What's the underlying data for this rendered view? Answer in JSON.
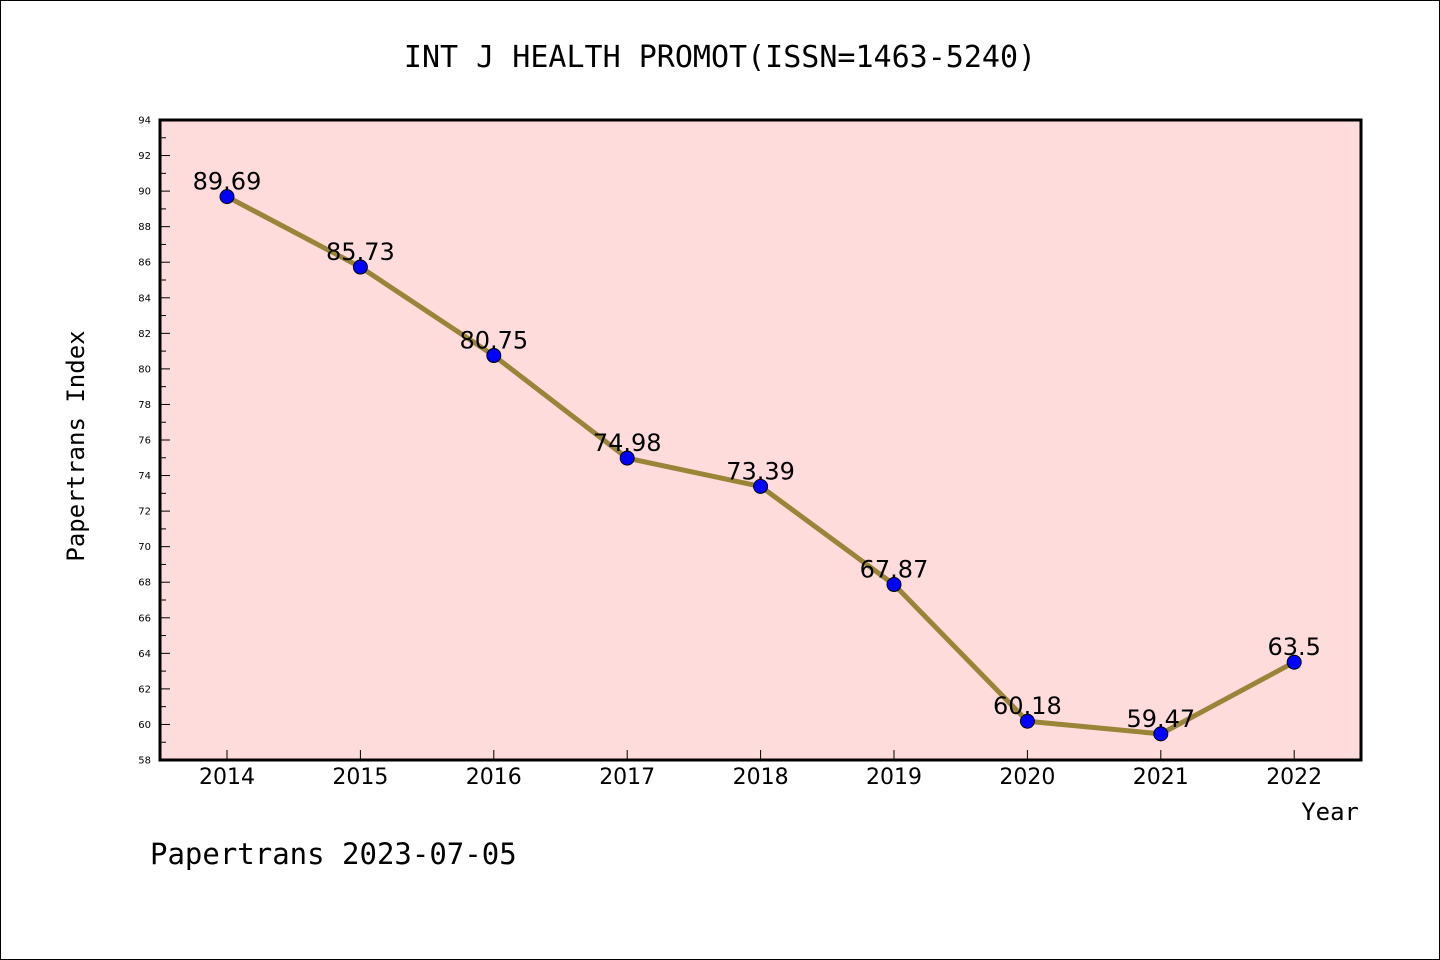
{
  "chart_data": {
    "type": "line",
    "title": "INT J HEALTH PROMOT(ISSN=1463-5240)",
    "xlabel": "Year",
    "ylabel": "Papertrans Index",
    "categories": [
      "2014",
      "2015",
      "2016",
      "2017",
      "2018",
      "2019",
      "2020",
      "2021",
      "2022"
    ],
    "values": [
      89.69,
      85.73,
      80.75,
      74.98,
      73.39,
      67.87,
      60.18,
      59.47,
      63.5
    ],
    "data_labels": [
      "89.69",
      "85.73",
      "80.75",
      "74.98",
      "73.39",
      "67.87",
      "60.18",
      "59.47",
      "63.5"
    ],
    "ylim": [
      58,
      94
    ],
    "yticks": [
      "58",
      "60",
      "62",
      "64",
      "66",
      "68",
      "70",
      "72",
      "74",
      "76",
      "78",
      "80",
      "82",
      "84",
      "86",
      "88",
      "90",
      "92",
      "94"
    ],
    "grid": false,
    "legend": "none",
    "colors": {
      "plot_background": "#ffdcdc",
      "line": "#9a8438",
      "marker": "#0000ff"
    }
  },
  "footer": "Papertrans 2023-07-05"
}
